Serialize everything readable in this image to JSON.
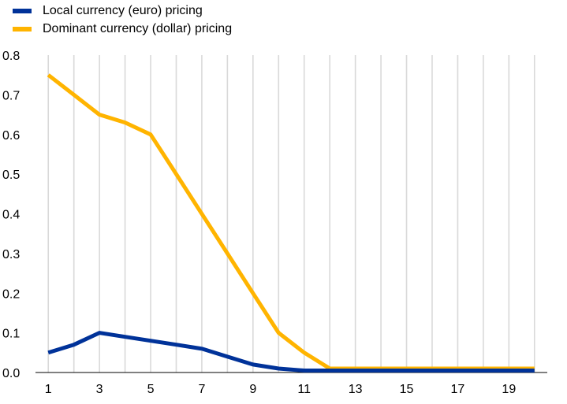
{
  "chart_data": {
    "type": "line",
    "title": "",
    "xlabel": "",
    "ylabel": "",
    "x": [
      1,
      2,
      3,
      4,
      5,
      6,
      7,
      8,
      9,
      10,
      11,
      12,
      13,
      14,
      15,
      16,
      17,
      18,
      19,
      20
    ],
    "xticks": [
      "1",
      "3",
      "5",
      "7",
      "9",
      "11",
      "13",
      "15",
      "17",
      "19"
    ],
    "yticks": [
      "0.0",
      "0.1",
      "0.2",
      "0.3",
      "0.4",
      "0.5",
      "0.6",
      "0.7",
      "0.8"
    ],
    "xlim": [
      0.5,
      20.5
    ],
    "ylim": [
      0,
      0.8
    ],
    "grid": "vertical",
    "legend_position": "top-left",
    "series": [
      {
        "name": "Local currency (euro) pricing",
        "color": "#003299",
        "values": [
          0.05,
          0.07,
          0.1,
          0.09,
          0.08,
          0.07,
          0.06,
          0.04,
          0.02,
          0.01,
          0.005,
          0.005,
          0.005,
          0.005,
          0.005,
          0.005,
          0.005,
          0.005,
          0.005,
          0.005
        ]
      },
      {
        "name": "Dominant currency (dollar) pricing",
        "color": "#FFB400",
        "values": [
          0.75,
          0.7,
          0.65,
          0.63,
          0.6,
          0.5,
          0.4,
          0.3,
          0.2,
          0.1,
          0.05,
          0.01,
          0.01,
          0.01,
          0.01,
          0.01,
          0.01,
          0.01,
          0.01,
          0.01
        ]
      }
    ]
  }
}
